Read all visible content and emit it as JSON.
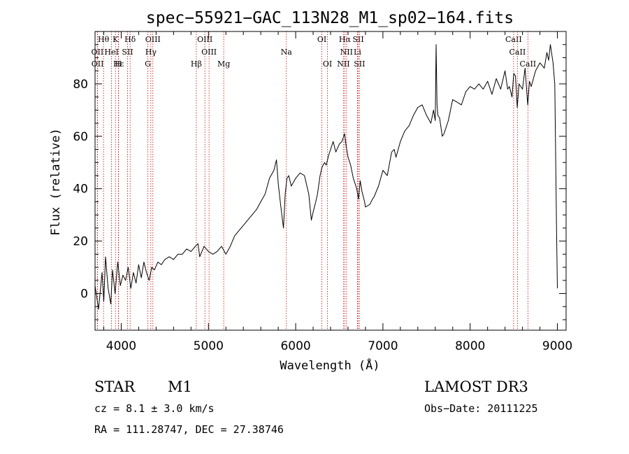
{
  "chart_data": {
    "type": "line",
    "title": "spec−55921−GAC_113N28_M1_sp02−164.fits",
    "xlabel": "Wavelength (Å)",
    "ylabel": "Flux (relative)",
    "xlim": [
      3700,
      9100
    ],
    "ylim": [
      -14,
      100
    ],
    "xticks": [
      4000,
      5000,
      6000,
      7000,
      8000,
      9000
    ],
    "yticks": [
      0,
      20,
      40,
      60,
      80
    ],
    "colors": {
      "spectrum": "#000000",
      "lines": "#cc0000"
    },
    "spectrum": {
      "name": "flux",
      "x": [
        3700,
        3740,
        3780,
        3800,
        3820,
        3850,
        3880,
        3900,
        3930,
        3960,
        3990,
        4020,
        4050,
        4080,
        4110,
        4140,
        4170,
        4200,
        4230,
        4260,
        4290,
        4320,
        4350,
        4380,
        4420,
        4460,
        4500,
        4550,
        4600,
        4650,
        4700,
        4750,
        4800,
        4850,
        4880,
        4900,
        4950,
        5000,
        5050,
        5100,
        5150,
        5200,
        5250,
        5300,
        5350,
        5400,
        5450,
        5500,
        5550,
        5600,
        5650,
        5700,
        5750,
        5780,
        5800,
        5830,
        5860,
        5880,
        5900,
        5920,
        5950,
        6000,
        6050,
        6100,
        6150,
        6180,
        6200,
        6230,
        6250,
        6280,
        6300,
        6330,
        6350,
        6380,
        6400,
        6430,
        6460,
        6500,
        6530,
        6560,
        6580,
        6600,
        6630,
        6660,
        6700,
        6720,
        6740,
        6760,
        6790,
        6800,
        6850,
        6880,
        6900,
        6950,
        7000,
        7050,
        7100,
        7130,
        7150,
        7200,
        7250,
        7300,
        7350,
        7400,
        7450,
        7500,
        7550,
        7580,
        7600,
        7610,
        7620,
        7630,
        7650,
        7680,
        7700,
        7750,
        7800,
        7850,
        7900,
        7950,
        8000,
        8050,
        8100,
        8150,
        8200,
        8250,
        8300,
        8350,
        8400,
        8430,
        8450,
        8480,
        8500,
        8520,
        8540,
        8560,
        8600,
        8630,
        8660,
        8680,
        8700,
        8750,
        8800,
        8850,
        8880,
        8900,
        8920,
        8950,
        8970,
        8990,
        9000
      ],
      "y": [
        3,
        -6,
        8,
        -3,
        14,
        2,
        -4,
        9,
        0,
        12,
        3,
        7,
        5,
        10,
        2,
        8,
        4,
        11,
        6,
        12,
        8,
        5,
        10,
        9,
        12,
        11,
        13,
        14,
        13,
        15,
        15,
        17,
        16,
        18,
        19,
        14,
        18,
        16,
        15,
        16,
        18,
        15,
        18,
        22,
        24,
        26,
        28,
        30,
        32,
        35,
        38,
        44,
        47,
        51,
        42,
        33,
        25,
        38,
        44,
        45,
        41,
        44,
        46,
        45,
        38,
        28,
        31,
        35,
        38,
        45,
        48,
        50,
        49,
        53,
        55,
        58,
        54,
        57,
        58,
        61,
        56,
        52,
        49,
        44,
        40,
        36,
        43,
        39,
        35,
        33,
        34,
        36,
        37,
        41,
        47,
        45,
        54,
        55,
        52,
        58,
        62,
        64,
        68,
        71,
        72,
        68,
        65,
        70,
        66,
        95,
        72,
        68,
        67,
        60,
        61,
        66,
        74,
        73,
        72,
        77,
        79,
        78,
        80,
        78,
        81,
        76,
        82,
        78,
        85,
        78,
        79,
        75,
        84,
        83,
        71,
        80,
        78,
        86,
        72,
        81,
        79,
        85,
        88,
        86,
        92,
        89,
        95,
        88,
        80,
        25,
        2
      ]
    },
    "spectral_lines": [
      {
        "label": "Hθ",
        "wl": 3797,
        "row": 1
      },
      {
        "label": "K",
        "wl": 3934,
        "row": 1
      },
      {
        "label": "Hδ",
        "wl": 4102,
        "row": 1
      },
      {
        "label": "OIII",
        "wl": 4363,
        "row": 1
      },
      {
        "label": "OIII",
        "wl": 4959,
        "row": 1
      },
      {
        "label": "OI",
        "wl": 6300,
        "row": 1
      },
      {
        "label": "Hα",
        "wl": 6563,
        "row": 1
      },
      {
        "label": "SII",
        "wl": 6717,
        "row": 1
      },
      {
        "label": "CaII",
        "wl": 8498,
        "row": 1
      },
      {
        "label": "OII",
        "wl": 3727,
        "row": 2
      },
      {
        "label": "HeI",
        "wl": 3889,
        "row": 2
      },
      {
        "label": "SII",
        "wl": 4072,
        "row": 2
      },
      {
        "label": "Hγ",
        "wl": 4340,
        "row": 2
      },
      {
        "label": "OIII",
        "wl": 5007,
        "row": 2
      },
      {
        "label": "Na",
        "wl": 5893,
        "row": 2
      },
      {
        "label": "NII",
        "wl": 6583,
        "row": 2
      },
      {
        "label": "Li",
        "wl": 6708,
        "row": 2
      },
      {
        "label": "CaII",
        "wl": 8542,
        "row": 2
      },
      {
        "label": "OII",
        "wl": 3729,
        "row": 3
      },
      {
        "label": "Hε",
        "wl": 3970,
        "row": 3
      },
      {
        "label": "H",
        "wl": 3968,
        "row": 3
      },
      {
        "label": "G",
        "wl": 4305,
        "row": 3
      },
      {
        "label": "Hβ",
        "wl": 4861,
        "row": 3
      },
      {
        "label": "Mg",
        "wl": 5175,
        "row": 3
      },
      {
        "label": "OI",
        "wl": 6364,
        "row": 3
      },
      {
        "label": "NII",
        "wl": 6548,
        "row": 3
      },
      {
        "label": "SII",
        "wl": 6731,
        "row": 3
      },
      {
        "label": "CaII",
        "wl": 8662,
        "row": 3
      }
    ]
  },
  "footer": {
    "object_class": "STAR",
    "subclass": "M1",
    "survey": "LAMOST DR3",
    "redshift": "cz = 8.1 ± 3.0 km/s",
    "obs_date": "Obs−Date: 20111225",
    "coords": "RA = 111.28747, DEC =  27.38746"
  }
}
